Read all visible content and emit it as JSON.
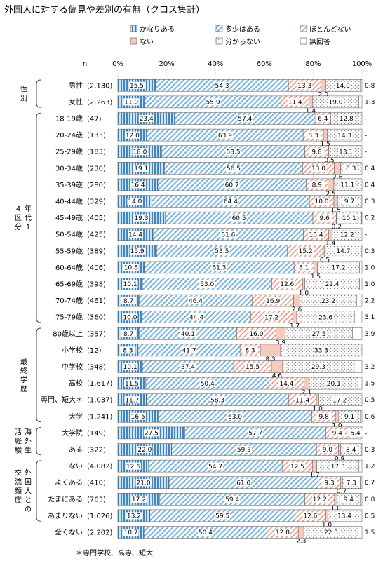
{
  "chart_data": {
    "type": "bar",
    "title": "外国人に対する偏見や差別の有無（クロス集計）",
    "n_label": "n",
    "footnote": "＊専門学校、高専、短大",
    "x_ticks": [
      "0%",
      "20%",
      "40%",
      "60%",
      "80%",
      "100%"
    ],
    "xlim": [
      0,
      100
    ],
    "legend": [
      {
        "name": "かなりある",
        "pattern": "vstripe",
        "color": "#4a90c8"
      },
      {
        "name": "多少はある",
        "pattern": "dstripe",
        "color": "#7ab4dc"
      },
      {
        "name": "ほとんどない",
        "pattern": "dstripe",
        "color": "#e59a85"
      },
      {
        "name": "ない",
        "pattern": "solid",
        "color": "#f4c2b2"
      },
      {
        "name": "分からない",
        "pattern": "dots",
        "color": "#999999"
      },
      {
        "name": "無回答",
        "pattern": "blank",
        "color": "#ffffff"
      }
    ],
    "groups": [
      {
        "name": "性別",
        "rows": [
          0,
          1
        ]
      },
      {
        "name": "年代14区分",
        "rows": [
          2,
          14
        ]
      },
      {
        "name": "最終学歴",
        "rows": [
          15,
          20
        ]
      },
      {
        "name": "海外生活経験",
        "rows": [
          21,
          22
        ]
      },
      {
        "name": "外国人との交流頻度",
        "rows": [
          23,
          26
        ]
      }
    ],
    "rows": [
      {
        "label": "男性",
        "n": "(2,130)",
        "values": [
          15.5,
          54.3,
          13.3,
          2.0,
          14.0,
          0.8
        ],
        "labels": [
          "15.5",
          "54.3",
          "13.3",
          "2.0",
          "14.0",
          "0.8"
        ]
      },
      {
        "label": "女性",
        "n": "(2,263)",
        "values": [
          11.0,
          55.9,
          11.4,
          1.4,
          19.0,
          1.3
        ],
        "labels": [
          "11.0",
          "55.9",
          "11.4",
          "1.4",
          "19.0",
          "1.3"
        ]
      },
      {
        "label": "18-19歳",
        "n": "(47)",
        "values": [
          23.4,
          57.4,
          6.4,
          0,
          12.8,
          0
        ],
        "labels": [
          "23.4",
          "57.4",
          "6.4",
          "",
          "12.8",
          "-"
        ]
      },
      {
        "label": "20-24歳",
        "n": "(133)",
        "values": [
          12.0,
          63.9,
          8.3,
          1.5,
          14.3,
          0
        ],
        "labels": [
          "12.0",
          "63.9",
          "8.3",
          "1.5",
          "14.3",
          "-"
        ]
      },
      {
        "label": "25-29歳",
        "n": "(183)",
        "values": [
          18.0,
          58.5,
          9.8,
          0.5,
          13.1,
          0
        ],
        "labels": [
          "18.0",
          "58.5",
          "9.8",
          "0.5",
          "13.1",
          "-"
        ]
      },
      {
        "label": "30-34歳",
        "n": "(230)",
        "values": [
          19.1,
          56.5,
          13.0,
          2.6,
          8.3,
          0.4
        ],
        "labels": [
          "19.1",
          "56.5",
          "13.0",
          "2.6",
          "8.3",
          "0.4"
        ]
      },
      {
        "label": "35-39歳",
        "n": "(280)",
        "values": [
          16.4,
          60.7,
          8.9,
          2.5,
          11.1,
          0.4
        ],
        "labels": [
          "16.4",
          "60.7",
          "8.9",
          "2.5",
          "11.1",
          "0.4"
        ]
      },
      {
        "label": "40-44歳",
        "n": "(329)",
        "values": [
          14.0,
          64.4,
          10.0,
          1.5,
          9.7,
          0.3
        ],
        "labels": [
          "14.0",
          "64.4",
          "10.0",
          "1.5",
          "9.7",
          "0.3"
        ]
      },
      {
        "label": "45-49歳",
        "n": "(405)",
        "values": [
          19.3,
          60.5,
          9.6,
          0.2,
          10.1,
          0.2
        ],
        "labels": [
          "19.3",
          "60.5",
          "9.6",
          "0.2",
          "10.1",
          "0.2"
        ]
      },
      {
        "label": "50-54歳",
        "n": "(425)",
        "values": [
          14.4,
          61.6,
          10.4,
          1.4,
          12.2,
          0
        ],
        "labels": [
          "14.4",
          "61.6",
          "10.4",
          "1.4",
          "12.2",
          "-"
        ]
      },
      {
        "label": "55-59歳",
        "n": "(389)",
        "values": [
          15.9,
          53.5,
          15.2,
          0.5,
          14.7,
          0.3
        ],
        "labels": [
          "15.9",
          "53.5",
          "15.2",
          "0.5",
          "14.7",
          "0.3"
        ]
      },
      {
        "label": "60-64歳",
        "n": "(406)",
        "values": [
          10.8,
          61.3,
          8.1,
          1.5,
          17.2,
          1.0
        ],
        "labels": [
          "10.8",
          "61.3",
          "8.1",
          "1.5",
          "17.2",
          "1.0"
        ]
      },
      {
        "label": "65-69歳",
        "n": "(398)",
        "values": [
          10.1,
          53.0,
          12.6,
          1.0,
          22.4,
          1.0
        ],
        "labels": [
          "10.1",
          "53.0",
          "12.6",
          "1.0",
          "22.4",
          "1.0"
        ]
      },
      {
        "label": "70-74歳",
        "n": "(461)",
        "values": [
          8.7,
          46.4,
          16.9,
          2.6,
          23.2,
          2.2
        ],
        "labels": [
          "8.7",
          "46.4",
          "16.9",
          "2.6",
          "23.2",
          "2.2"
        ]
      },
      {
        "label": "75-79歳",
        "n": "(360)",
        "values": [
          10.0,
          44.4,
          17.2,
          1.7,
          23.6,
          3.1
        ],
        "labels": [
          "10.0",
          "44.4",
          "17.2",
          "1.7",
          "23.6",
          "3.1"
        ]
      },
      {
        "label": "80歳以上",
        "n": "(357)",
        "values": [
          8.7,
          40.1,
          16.0,
          3.9,
          27.5,
          3.9
        ],
        "labels": [
          "8.7",
          "40.1",
          "16.0",
          "3.9",
          "27.5",
          "3.9"
        ]
      },
      {
        "label": "小学校",
        "n": "(12)",
        "values": [
          8.3,
          41.7,
          8.3,
          8.3,
          33.3,
          0
        ],
        "labels": [
          "8.3",
          "41.7",
          "8.3",
          "8.3",
          "33.3",
          "-"
        ]
      },
      {
        "label": "中学校",
        "n": "(348)",
        "values": [
          10.1,
          37.4,
          15.5,
          4.6,
          29.3,
          3.2
        ],
        "labels": [
          "10.1",
          "37.4",
          "15.5",
          "4.6",
          "29.3",
          "3.2"
        ]
      },
      {
        "label": "高校",
        "n": "(1,617)",
        "values": [
          11.5,
          50.4,
          14.4,
          2.1,
          20.1,
          1.5
        ],
        "labels": [
          "11.5",
          "50.4",
          "14.4",
          "2.1",
          "20.1",
          "1.5"
        ]
      },
      {
        "label": "専門、短大＊",
        "n": "(1,037)",
        "values": [
          11.7,
          58.3,
          11.4,
          1.0,
          17.2,
          0.5
        ],
        "labels": [
          "11.7",
          "58.3",
          "11.4",
          "1.0",
          "17.2",
          "0.5"
        ]
      },
      {
        "label": "大学",
        "n": "(1,241)",
        "values": [
          16.5,
          63.0,
          9.8,
          1.0,
          9.1,
          0.6
        ],
        "labels": [
          "16.5",
          "63.0",
          "9.8",
          "1.0",
          "9.1",
          "0.6"
        ]
      },
      {
        "label": "大学院",
        "n": "(149)",
        "values": [
          27.5,
          57.7,
          9.4,
          0,
          5.4,
          0
        ],
        "labels": [
          "27.5",
          "57.7",
          "9.4",
          "",
          "5.4",
          "-"
        ]
      },
      {
        "label": "ある",
        "n": "(322)",
        "values": [
          22.0,
          59.3,
          9.0,
          0.9,
          8.4,
          0.3
        ],
        "labels": [
          "22.0",
          "59.3",
          "9.0",
          "0.9",
          "8.4",
          "0.3"
        ]
      },
      {
        "label": "ない",
        "n": "(4,082)",
        "values": [
          12.6,
          54.7,
          12.5,
          1.7,
          17.3,
          1.2
        ],
        "labels": [
          "12.6",
          "54.7",
          "12.5",
          "1.7",
          "17.3",
          "1.2"
        ]
      },
      {
        "label": "よくある",
        "n": "(410)",
        "values": [
          21.0,
          61.0,
          9.3,
          0.7,
          7.3,
          0.7
        ],
        "labels": [
          "21.0",
          "61.0",
          "9.3",
          "0.7",
          "7.3",
          "0.7"
        ]
      },
      {
        "label": "たまにある",
        "n": "(763)",
        "values": [
          17.2,
          59.4,
          12.2,
          1.0,
          9.4,
          0.8
        ],
        "labels": [
          "17.2",
          "59.4",
          "12.2",
          "1.0",
          "9.4",
          "0.8"
        ]
      },
      {
        "label": "あまりない",
        "n": "(1,026)",
        "values": [
          13.2,
          59.5,
          12.6,
          1.0,
          13.4,
          0.5
        ],
        "labels": [
          "13.2",
          "59.5",
          "12.6",
          "1.0",
          "13.4",
          "0.5"
        ]
      },
      {
        "label": "全くない",
        "n": "(2,202)",
        "values": [
          10.7,
          50.4,
          12.8,
          2.3,
          22.3,
          1.5
        ],
        "labels": [
          "10.7",
          "50.4",
          "12.8",
          "2.3",
          "22.3",
          "1.5"
        ]
      }
    ]
  }
}
